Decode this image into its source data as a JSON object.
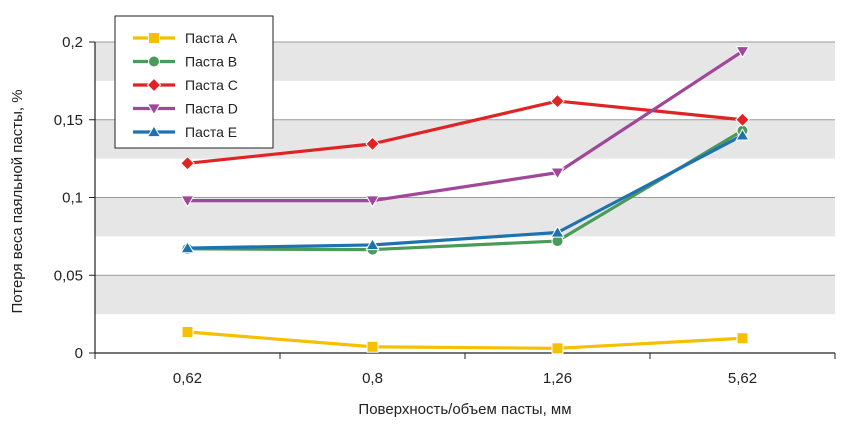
{
  "chart_data": {
    "type": "line",
    "xlabel": "Поверхность/объем пасты, мм",
    "ylabel": "Потеря веса паяльной пасты, %",
    "categories": [
      "0,62",
      "0,8",
      "1,26",
      "5,62"
    ],
    "ylim": [
      0,
      0.2
    ],
    "yticks": [
      {
        "value": 0,
        "label": "0"
      },
      {
        "value": 0.05,
        "label": "0,05"
      },
      {
        "value": 0.1,
        "label": "0,1"
      },
      {
        "value": 0.15,
        "label": "0,15"
      },
      {
        "value": 0.2,
        "label": "0,2"
      }
    ],
    "grid": true,
    "legend_position": "top-left",
    "series": [
      {
        "name": "Паста A",
        "color": "#f5c000",
        "marker": "square",
        "values": [
          0.0135,
          0.004,
          0.003,
          0.0095
        ]
      },
      {
        "name": "Паста B",
        "color": "#4a9a5a",
        "marker": "circle",
        "values": [
          0.067,
          0.0665,
          0.072,
          0.143
        ]
      },
      {
        "name": "Паста C",
        "color": "#e02426",
        "marker": "diamond",
        "values": [
          0.122,
          0.1345,
          0.162,
          0.15
        ]
      },
      {
        "name": "Паста D",
        "color": "#a0479a",
        "marker": "triangle-down",
        "values": [
          0.098,
          0.098,
          0.116,
          0.194
        ]
      },
      {
        "name": "Паста E",
        "color": "#1f72b0",
        "marker": "triangle-up",
        "values": [
          0.0675,
          0.0695,
          0.0775,
          0.14
        ]
      }
    ]
  }
}
